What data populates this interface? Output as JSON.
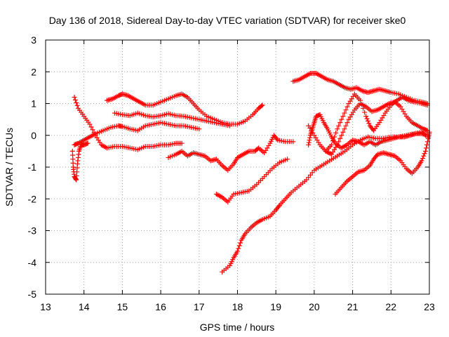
{
  "chart_data": {
    "type": "scatter",
    "title": "Day 136 of 2018, Sidereal Day-to-day VTEC variation (SDTVAR) for receiver ske0",
    "xlabel": "GPS time / hours",
    "ylabel": "SDTVAR / TECUs",
    "xlim": [
      13,
      23
    ],
    "ylim": [
      -5,
      3
    ],
    "xticks": [
      "13",
      "14",
      "15",
      "16",
      "17",
      "18",
      "19",
      "20",
      "21",
      "22",
      "23"
    ],
    "yticks": [
      "-5",
      "-4",
      "-3",
      "-2",
      "-1",
      "0",
      "1",
      "2",
      "3"
    ],
    "grid": true,
    "marker": "+",
    "color": "#ff0000",
    "series": [
      {
        "points": [
          [
            13.75,
            1.2
          ],
          [
            13.85,
            0.85
          ],
          [
            14.0,
            0.6
          ],
          [
            14.15,
            0.35
          ],
          [
            14.3,
            0.0
          ],
          [
            14.45,
            -0.3
          ],
          [
            14.6,
            -0.4
          ],
          [
            14.8,
            -0.35
          ],
          [
            15.0,
            -0.35
          ],
          [
            15.2,
            -0.4
          ],
          [
            15.4,
            -0.45
          ],
          [
            15.6,
            -0.35
          ],
          [
            15.8,
            -0.35
          ],
          [
            16.0,
            -0.3
          ],
          [
            16.2,
            -0.3
          ],
          [
            16.4,
            -0.25
          ],
          [
            16.55,
            -0.25
          ]
        ]
      },
      {
        "points": [
          [
            13.75,
            -0.3
          ],
          [
            13.85,
            -0.25
          ],
          [
            14.0,
            -0.15
          ],
          [
            14.15,
            -0.05
          ],
          [
            14.3,
            0.05
          ],
          [
            14.5,
            0.15
          ],
          [
            14.7,
            0.25
          ],
          [
            14.9,
            0.3
          ],
          [
            15.0,
            0.28
          ],
          [
            15.2,
            0.2
          ],
          [
            15.4,
            0.15
          ],
          [
            15.6,
            0.3
          ],
          [
            15.8,
            0.35
          ],
          [
            16.0,
            0.4
          ],
          [
            16.2,
            0.35
          ],
          [
            16.4,
            0.3
          ],
          [
            16.6,
            0.3
          ],
          [
            16.8,
            0.25
          ],
          [
            17.0,
            0.2
          ]
        ]
      },
      {
        "points": [
          [
            13.7,
            -0.5
          ],
          [
            13.72,
            -1.0
          ],
          [
            13.75,
            -1.3
          ],
          [
            13.8,
            -1.4
          ],
          [
            13.83,
            -0.9
          ],
          [
            13.87,
            -0.5
          ],
          [
            13.92,
            -0.3
          ],
          [
            14.0,
            -0.3
          ],
          [
            14.1,
            -0.25
          ]
        ]
      },
      {
        "points": [
          [
            14.6,
            1.1
          ],
          [
            14.75,
            1.15
          ],
          [
            14.9,
            1.25
          ],
          [
            15.0,
            1.3
          ],
          [
            15.15,
            1.25
          ],
          [
            15.3,
            1.15
          ],
          [
            15.45,
            1.05
          ],
          [
            15.6,
            0.95
          ],
          [
            15.8,
            0.95
          ],
          [
            16.0,
            1.05
          ],
          [
            16.2,
            1.15
          ],
          [
            16.4,
            1.25
          ],
          [
            16.55,
            1.3
          ],
          [
            16.7,
            1.2
          ],
          [
            16.85,
            1.0
          ],
          [
            17.0,
            0.8
          ],
          [
            17.2,
            0.6
          ],
          [
            17.4,
            0.5
          ],
          [
            17.6,
            0.4
          ],
          [
            17.8,
            0.35
          ],
          [
            18.0,
            0.35
          ],
          [
            18.2,
            0.45
          ],
          [
            18.4,
            0.65
          ],
          [
            18.55,
            0.85
          ],
          [
            18.65,
            0.95
          ]
        ]
      },
      {
        "points": [
          [
            14.8,
            0.7
          ],
          [
            15.0,
            0.65
          ],
          [
            15.2,
            0.62
          ],
          [
            15.4,
            0.7
          ],
          [
            15.6,
            0.62
          ],
          [
            15.8,
            0.58
          ],
          [
            16.0,
            0.62
          ],
          [
            16.2,
            0.68
          ],
          [
            16.4,
            0.62
          ],
          [
            16.6,
            0.6
          ],
          [
            16.8,
            0.55
          ],
          [
            17.0,
            0.5
          ],
          [
            17.2,
            0.45
          ],
          [
            17.4,
            0.4
          ],
          [
            17.6,
            0.35
          ],
          [
            17.8,
            0.3
          ]
        ]
      },
      {
        "points": [
          [
            16.2,
            -0.7
          ],
          [
            16.4,
            -0.6
          ],
          [
            16.55,
            -0.5
          ],
          [
            16.7,
            -0.65
          ],
          [
            16.85,
            -0.55
          ],
          [
            17.0,
            -0.6
          ],
          [
            17.15,
            -0.65
          ],
          [
            17.3,
            -0.8
          ],
          [
            17.45,
            -0.75
          ],
          [
            17.6,
            -0.95
          ],
          [
            17.75,
            -1.1
          ],
          [
            17.9,
            -0.9
          ],
          [
            18.0,
            -0.7
          ],
          [
            18.15,
            -0.6
          ],
          [
            18.3,
            -0.5
          ],
          [
            18.45,
            -0.5
          ],
          [
            18.55,
            -0.4
          ],
          [
            18.7,
            -0.55
          ],
          [
            18.85,
            -0.25
          ],
          [
            18.95,
            0.0
          ],
          [
            19.05,
            -0.15
          ],
          [
            19.25,
            -0.2
          ],
          [
            19.45,
            -0.2
          ]
        ]
      },
      {
        "points": [
          [
            17.45,
            -1.85
          ],
          [
            17.6,
            -1.95
          ],
          [
            17.75,
            -2.1
          ],
          [
            17.9,
            -1.85
          ],
          [
            18.1,
            -1.8
          ],
          [
            18.3,
            -1.75
          ],
          [
            18.5,
            -1.55
          ],
          [
            18.7,
            -1.3
          ],
          [
            18.9,
            -1.05
          ],
          [
            19.1,
            -0.85
          ],
          [
            19.3,
            -0.75
          ]
        ]
      },
      {
        "points": [
          [
            17.6,
            -4.3
          ],
          [
            17.8,
            -4.1
          ],
          [
            17.9,
            -3.85
          ],
          [
            18.0,
            -3.65
          ],
          [
            18.1,
            -3.3
          ],
          [
            18.2,
            -3.1
          ],
          [
            18.35,
            -2.9
          ],
          [
            18.5,
            -2.75
          ],
          [
            18.65,
            -2.65
          ],
          [
            18.85,
            -2.55
          ],
          [
            19.0,
            -2.35
          ],
          [
            19.1,
            -2.2
          ],
          [
            19.25,
            -2.0
          ],
          [
            19.4,
            -1.8
          ],
          [
            19.6,
            -1.6
          ],
          [
            19.8,
            -1.4
          ],
          [
            20.0,
            -1.1
          ],
          [
            20.2,
            -0.95
          ],
          [
            20.4,
            -0.8
          ],
          [
            20.6,
            -0.65
          ],
          [
            20.8,
            -0.5
          ],
          [
            21.0,
            -0.3
          ],
          [
            21.2,
            -0.15
          ],
          [
            21.4,
            -0.05
          ],
          [
            21.6,
            -0.1
          ],
          [
            21.8,
            -0.1
          ],
          [
            22.0,
            -0.05
          ],
          [
            22.2,
            -0.05
          ],
          [
            22.4,
            0.0
          ],
          [
            22.6,
            0.05
          ],
          [
            22.8,
            0.1
          ],
          [
            22.9,
            0.0
          ]
        ]
      },
      {
        "points": [
          [
            19.45,
            1.7
          ],
          [
            19.6,
            1.75
          ],
          [
            19.75,
            1.85
          ],
          [
            19.9,
            1.95
          ],
          [
            20.05,
            1.95
          ],
          [
            20.2,
            1.85
          ],
          [
            20.35,
            1.75
          ],
          [
            20.5,
            1.7
          ],
          [
            20.65,
            1.6
          ],
          [
            20.8,
            1.5
          ],
          [
            20.95,
            1.45
          ],
          [
            21.1,
            1.5
          ],
          [
            21.25,
            1.4
          ],
          [
            21.4,
            1.35
          ],
          [
            21.55,
            1.4
          ],
          [
            21.7,
            1.45
          ],
          [
            21.85,
            1.4
          ],
          [
            22.0,
            1.35
          ],
          [
            22.2,
            1.3
          ],
          [
            22.4,
            1.2
          ],
          [
            22.6,
            1.1
          ],
          [
            22.8,
            1.05
          ],
          [
            22.95,
            1.0
          ]
        ]
      },
      {
        "points": [
          [
            19.85,
            -0.3
          ],
          [
            19.9,
            0.0
          ],
          [
            19.95,
            0.2
          ],
          [
            20.0,
            0.4
          ],
          [
            20.05,
            0.6
          ],
          [
            20.15,
            0.65
          ],
          [
            20.25,
            0.4
          ],
          [
            20.35,
            0.2
          ],
          [
            20.45,
            -0.05
          ],
          [
            20.55,
            -0.25
          ],
          [
            20.7,
            -0.4
          ],
          [
            20.85,
            -0.3
          ],
          [
            21.0,
            -0.15
          ],
          [
            21.15,
            -0.2
          ],
          [
            21.3,
            -0.3
          ],
          [
            21.45,
            -0.2
          ],
          [
            21.6,
            -0.3
          ],
          [
            21.75,
            -0.2
          ],
          [
            21.9,
            -0.15
          ],
          [
            22.05,
            -0.1
          ],
          [
            22.2,
            -0.05
          ],
          [
            22.35,
            -0.05
          ],
          [
            22.5,
            0.0
          ],
          [
            22.65,
            0.05
          ],
          [
            22.8,
            0.05
          ],
          [
            22.95,
            0.0
          ]
        ]
      },
      {
        "points": [
          [
            20.55,
            -1.85
          ],
          [
            20.7,
            -1.65
          ],
          [
            20.85,
            -1.45
          ],
          [
            21.0,
            -1.3
          ],
          [
            21.15,
            -1.15
          ],
          [
            21.3,
            -1.1
          ],
          [
            21.45,
            -0.95
          ],
          [
            21.55,
            -0.75
          ],
          [
            21.65,
            -0.6
          ],
          [
            21.8,
            -0.55
          ],
          [
            21.95,
            -0.6
          ],
          [
            22.1,
            -0.65
          ],
          [
            22.25,
            -0.8
          ],
          [
            22.4,
            -1.05
          ],
          [
            22.55,
            -1.2
          ],
          [
            22.7,
            -1.0
          ],
          [
            22.8,
            -0.8
          ],
          [
            22.9,
            -0.5
          ],
          [
            22.97,
            -0.1
          ],
          [
            23.0,
            0.1
          ]
        ]
      },
      {
        "points": [
          [
            20.3,
            -0.5
          ],
          [
            20.45,
            -0.3
          ],
          [
            20.6,
            0.2
          ],
          [
            20.75,
            0.6
          ],
          [
            20.9,
            1.0
          ],
          [
            21.05,
            1.3
          ],
          [
            21.2,
            1.1
          ],
          [
            21.35,
            0.6
          ],
          [
            21.45,
            0.3
          ],
          [
            21.55,
            0.15
          ],
          [
            21.7,
            0.4
          ],
          [
            21.85,
            0.7
          ],
          [
            22.0,
            0.95
          ],
          [
            22.15,
            1.1
          ],
          [
            22.3,
            1.2
          ],
          [
            22.45,
            1.1
          ],
          [
            22.6,
            1.05
          ],
          [
            22.8,
            1.0
          ],
          [
            22.95,
            0.95
          ]
        ]
      },
      {
        "points": [
          [
            19.85,
            0.3
          ],
          [
            20.0,
            0.0
          ],
          [
            20.15,
            -0.3
          ],
          [
            20.3,
            -0.5
          ],
          [
            20.45,
            -0.6
          ],
          [
            20.6,
            -0.3
          ],
          [
            20.75,
            0.1
          ],
          [
            20.9,
            0.5
          ],
          [
            21.05,
            0.8
          ],
          [
            21.2,
            1.0
          ],
          [
            21.35,
            0.9
          ],
          [
            21.5,
            0.75
          ],
          [
            21.65,
            0.8
          ],
          [
            21.8,
            0.9
          ],
          [
            21.95,
            1.0
          ],
          [
            22.1,
            1.05
          ],
          [
            22.25,
            0.9
          ],
          [
            22.4,
            0.6
          ],
          [
            22.55,
            0.4
          ],
          [
            22.7,
            0.3
          ],
          [
            22.85,
            0.2
          ],
          [
            22.95,
            0.15
          ]
        ]
      }
    ]
  }
}
